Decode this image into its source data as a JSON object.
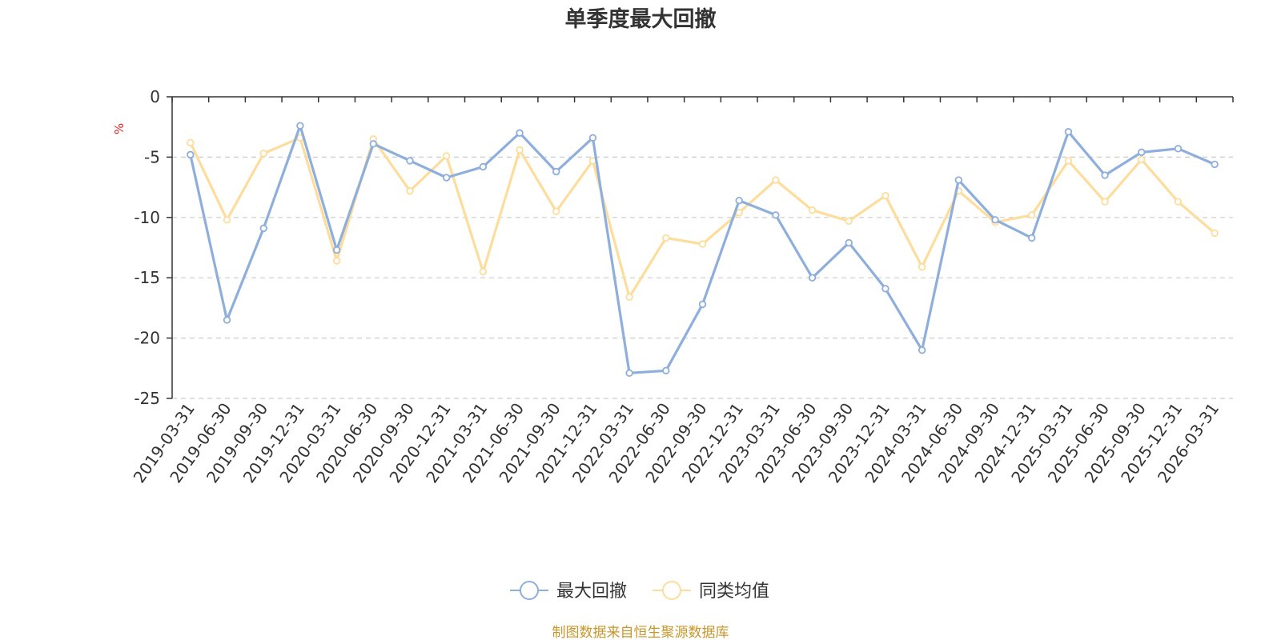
{
  "chart_data": {
    "type": "line",
    "title": "单季度最大回撤",
    "ylabel": "%",
    "ylim": [
      -25,
      0
    ],
    "yticks": [
      0,
      -5,
      -10,
      -15,
      -20,
      -25
    ],
    "grid": true,
    "legend_position": "bottom",
    "categories": [
      "2019-03-31",
      "2019-06-30",
      "2019-09-30",
      "2019-12-31",
      "2020-03-31",
      "2020-06-30",
      "2020-09-30",
      "2020-12-31",
      "2021-03-31",
      "2021-06-30",
      "2021-09-30",
      "2021-12-31",
      "2022-03-31",
      "2022-06-30",
      "2022-09-30",
      "2022-12-31",
      "2023-03-31",
      "2023-06-30",
      "2023-09-30",
      "2023-12-31",
      "2024-03-31",
      "2024-06-30",
      "2024-09-30",
      "2024-12-31",
      "2025-03-31",
      "2025-06-30",
      "2025-09-30",
      "2025-12-31",
      "2026-03-31"
    ],
    "series": [
      {
        "name": "最大回撤",
        "color": "#8eaedb",
        "values": [
          -4.8,
          -18.5,
          -10.9,
          -2.4,
          -12.7,
          -3.9,
          -5.3,
          -6.7,
          -5.8,
          -3.0,
          -6.2,
          -3.4,
          -22.9,
          -22.7,
          -17.2,
          -8.6,
          -9.8,
          -15.0,
          -12.1,
          -15.9,
          -21.0,
          -6.9,
          -10.2,
          -11.7,
          -2.9,
          -6.5,
          -4.6,
          -4.3,
          -5.6
        ]
      },
      {
        "name": "同类均值",
        "color": "#fddd9b",
        "values": [
          -3.8,
          -10.2,
          -4.7,
          -3.4,
          -13.6,
          -3.5,
          -7.8,
          -4.9,
          -14.5,
          -4.4,
          -9.5,
          -5.3,
          -16.6,
          -11.7,
          -12.2,
          -9.6,
          -6.9,
          -9.4,
          -10.3,
          -8.2,
          -14.1,
          -7.8,
          -10.4,
          -9.8,
          -5.3,
          -8.7,
          -5.2,
          -8.7,
          -11.3
        ]
      }
    ]
  },
  "source_text": "制图数据来自恒生聚源数据库",
  "colors": {
    "unit": "#e02020",
    "source": "#c9962b",
    "axis": "#333333",
    "grid": "#cccccc"
  }
}
